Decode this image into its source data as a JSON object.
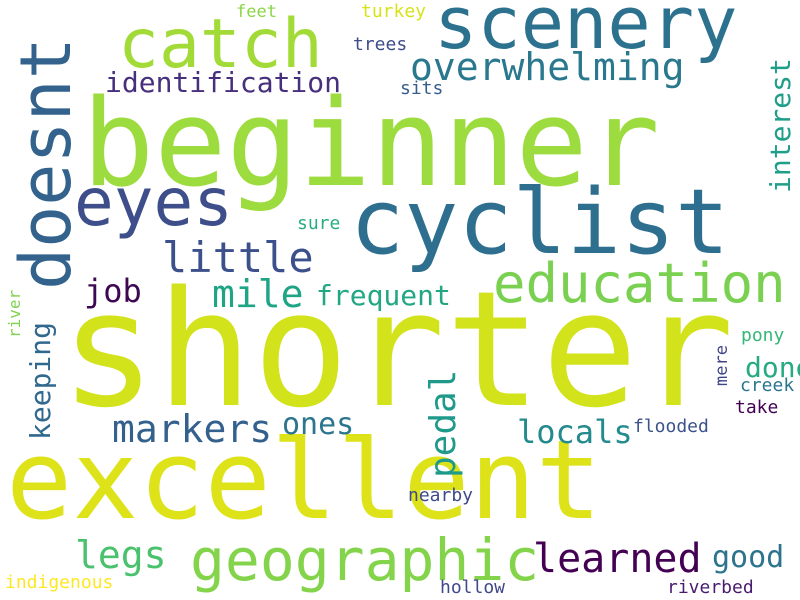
{
  "background": "#ffffff",
  "words": [
    {
      "text": "shorter",
      "color": "#d2e21b"
    },
    {
      "text": "beginner",
      "color": "#9ddc3e"
    },
    {
      "text": "excellent",
      "color": "#dde318"
    },
    {
      "text": "cyclist",
      "color": "#2e6e8e"
    },
    {
      "text": "scenery",
      "color": "#2c728e"
    },
    {
      "text": "catch",
      "color": "#a2da37"
    },
    {
      "text": "doesnt",
      "color": "#33638d"
    },
    {
      "text": "eyes",
      "color": "#3d4e8a"
    },
    {
      "text": "education",
      "color": "#7ad151"
    },
    {
      "text": "geographic",
      "color": "#84d44b"
    },
    {
      "text": "overwhelming",
      "color": "#2a788e"
    },
    {
      "text": "identification",
      "color": "#472f7d"
    },
    {
      "text": "little",
      "color": "#3c508b"
    },
    {
      "text": "mile",
      "color": "#20a486"
    },
    {
      "text": "frequent",
      "color": "#22a785"
    },
    {
      "text": "job",
      "color": "#3e0751"
    },
    {
      "text": "interest",
      "color": "#1f9e89"
    },
    {
      "text": "markers",
      "color": "#34608d"
    },
    {
      "text": "ones",
      "color": "#2b758e"
    },
    {
      "text": "pedal",
      "color": "#1f9a8a"
    },
    {
      "text": "locals",
      "color": "#238a8d"
    },
    {
      "text": "done",
      "color": "#25ab82"
    },
    {
      "text": "keeping",
      "color": "#31688e"
    },
    {
      "text": "legs",
      "color": "#4ac16d"
    },
    {
      "text": "learned",
      "color": "#440154"
    },
    {
      "text": "good",
      "color": "#2c738e"
    },
    {
      "text": "trees",
      "color": "#3d4d8a"
    },
    {
      "text": "sits",
      "color": "#365d8d"
    },
    {
      "text": "feet",
      "color": "#8bd646"
    },
    {
      "text": "turkey",
      "color": "#d8e219"
    },
    {
      "text": "sure",
      "color": "#27ad81"
    },
    {
      "text": "river",
      "color": "#7fd34e"
    },
    {
      "text": "pony",
      "color": "#35b779"
    },
    {
      "text": "mere",
      "color": "#404588"
    },
    {
      "text": "creek",
      "color": "#2a768e"
    },
    {
      "text": "take",
      "color": "#440154"
    },
    {
      "text": "flooded",
      "color": "#3b528b"
    },
    {
      "text": "nearby",
      "color": "#3e4a89"
    },
    {
      "text": "indigenous",
      "color": "#fde725"
    },
    {
      "text": "hollow",
      "color": "#3f4889"
    },
    {
      "text": "riverbed",
      "color": "#481c6e"
    }
  ]
}
